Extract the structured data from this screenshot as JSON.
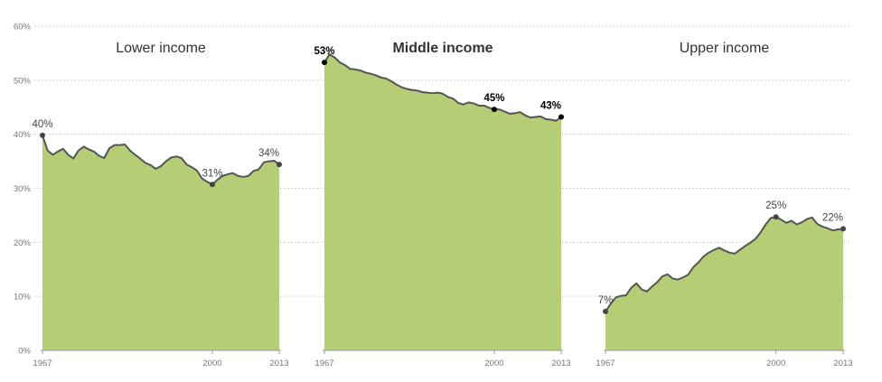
{
  "colors": {
    "area": "#b5cd74",
    "line": "#555555",
    "grid": "#c8c8c8",
    "text": "#333333",
    "axis_text": "#777777"
  },
  "chart_data": {
    "type": "area",
    "grid": true,
    "legend": "none",
    "x_ticks": [
      1967,
      2000,
      2013
    ],
    "x_tick_labels": [
      "1967",
      "2000",
      "2013"
    ],
    "xlim": [
      1967,
      2013
    ],
    "ylim": [
      0,
      60
    ],
    "y_ticks": [
      0,
      10,
      20,
      30,
      40,
      50,
      60
    ],
    "y_tick_labels": [
      "0%",
      "10%",
      "20%",
      "30%",
      "40%",
      "50%",
      "60%"
    ],
    "panels": [
      {
        "title": "Lower income",
        "title_bold": false,
        "x": [
          1967,
          1968,
          1969,
          1970,
          1971,
          1972,
          1973,
          1974,
          1975,
          1976,
          1977,
          1978,
          1979,
          1980,
          1981,
          1982,
          1983,
          1984,
          1985,
          1986,
          1987,
          1988,
          1989,
          1990,
          1991,
          1992,
          1993,
          1994,
          1995,
          1996,
          1997,
          1998,
          1999,
          2000,
          2001,
          2002,
          2003,
          2004,
          2005,
          2006,
          2007,
          2008,
          2009,
          2010,
          2011,
          2012,
          2013
        ],
        "values": [
          39.8,
          37,
          36.2,
          36.8,
          37.3,
          36.2,
          35.5,
          37,
          37.7,
          37.2,
          36.8,
          36,
          35.6,
          37.4,
          38,
          38,
          38.1,
          37,
          36.2,
          35.5,
          34.7,
          34.3,
          33.6,
          34.1,
          35,
          35.7,
          35.9,
          35.6,
          34.4,
          33.9,
          33.3,
          31.8,
          31.2,
          30.7,
          31.6,
          32.3,
          32.6,
          32.8,
          32.3,
          32.1,
          32.3,
          33.2,
          33.5,
          34.8,
          35,
          35.1,
          34.4
        ],
        "labels": [
          {
            "x": 1967,
            "y": 39.8,
            "text": "40%"
          },
          {
            "x": 2000,
            "y": 30.7,
            "text": "31%"
          },
          {
            "x": 2013,
            "y": 34.4,
            "text": "34%"
          }
        ]
      },
      {
        "title": "Middle income",
        "title_bold": true,
        "x": [
          1967,
          1968,
          1969,
          1970,
          1971,
          1972,
          1973,
          1974,
          1975,
          1976,
          1977,
          1978,
          1979,
          1980,
          1981,
          1982,
          1983,
          1984,
          1985,
          1986,
          1987,
          1988,
          1989,
          1990,
          1991,
          1992,
          1993,
          1994,
          1995,
          1996,
          1997,
          1998,
          1999,
          2000,
          2001,
          2002,
          2003,
          2004,
          2005,
          2006,
          2007,
          2008,
          2009,
          2010,
          2011,
          2012,
          2013
        ],
        "values": [
          53.3,
          54.8,
          54.2,
          53.3,
          52.8,
          52.1,
          52,
          51.8,
          51.4,
          51.2,
          50.9,
          50.5,
          50.3,
          49.8,
          49.2,
          48.7,
          48.4,
          48.2,
          48.1,
          47.8,
          47.7,
          47.6,
          47.7,
          47.5,
          46.9,
          46.6,
          45.8,
          45.5,
          45.9,
          45.7,
          45.3,
          45.3,
          44.9,
          44.6,
          44.6,
          44.2,
          43.8,
          43.9,
          44.1,
          43.5,
          43.1,
          43.2,
          43.3,
          42.8,
          42.7,
          42.5,
          43.2
        ],
        "labels": [
          {
            "x": 1967,
            "y": 53.3,
            "text": "53%"
          },
          {
            "x": 2000,
            "y": 44.6,
            "text": "45%"
          },
          {
            "x": 2013,
            "y": 43.2,
            "text": "43%"
          }
        ]
      },
      {
        "title": "Upper income",
        "title_bold": false,
        "x": [
          1967,
          1968,
          1969,
          1970,
          1971,
          1972,
          1973,
          1974,
          1975,
          1976,
          1977,
          1978,
          1979,
          1980,
          1981,
          1982,
          1983,
          1984,
          1985,
          1986,
          1987,
          1988,
          1989,
          1990,
          1991,
          1992,
          1993,
          1994,
          1995,
          1996,
          1997,
          1998,
          1999,
          2000,
          2001,
          2002,
          2003,
          2004,
          2005,
          2006,
          2007,
          2008,
          2009,
          2010,
          2011,
          2012,
          2013
        ],
        "values": [
          7.2,
          8.6,
          9.8,
          10.1,
          10.2,
          11.6,
          12.4,
          11.3,
          10.9,
          11.8,
          12.6,
          13.7,
          14.1,
          13.3,
          13.1,
          13.5,
          14,
          15.4,
          16.3,
          17.4,
          18.1,
          18.6,
          19,
          18.5,
          18.1,
          17.9,
          18.6,
          19.3,
          19.9,
          20.6,
          21.8,
          23.3,
          24.5,
          24.7,
          24.2,
          23.6,
          24,
          23.3,
          23.7,
          24.3,
          24.6,
          23.4,
          22.9,
          22.6,
          22.2,
          22.4,
          22.5
        ],
        "labels": [
          {
            "x": 1967,
            "y": 7.2,
            "text": "7%"
          },
          {
            "x": 2000,
            "y": 24.7,
            "text": "25%"
          },
          {
            "x": 2013,
            "y": 22.5,
            "text": "22%"
          }
        ]
      }
    ]
  }
}
